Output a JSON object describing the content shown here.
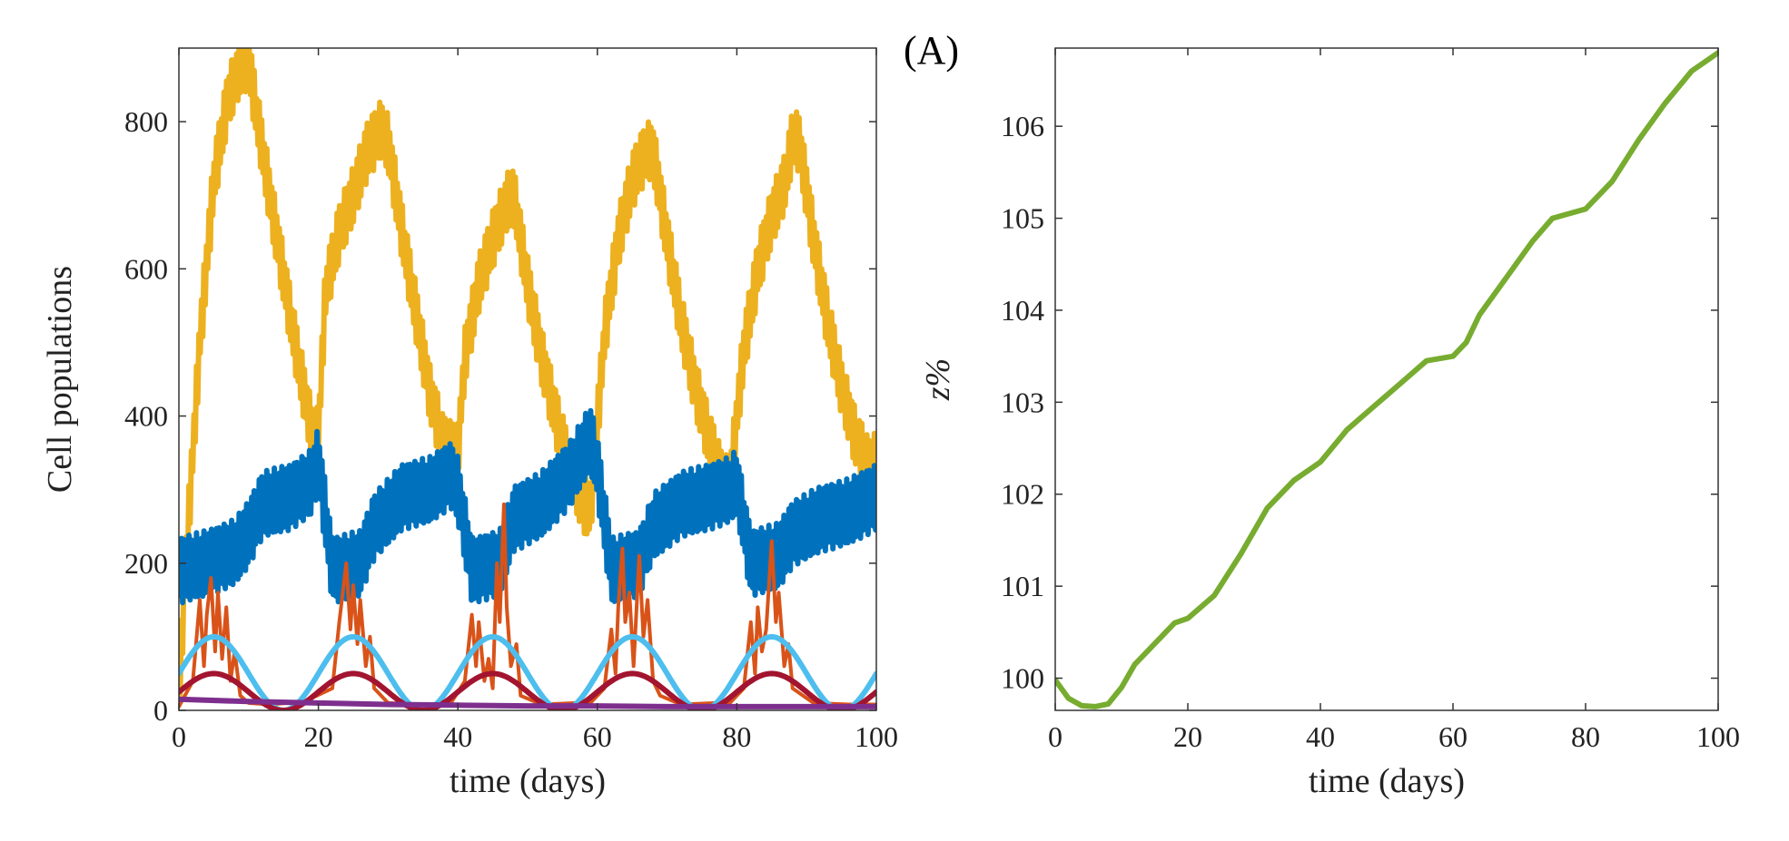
{
  "panel_label": "(A)",
  "chart_data": [
    {
      "type": "line",
      "title": "",
      "xlabel": "time (days)",
      "ylabel": "Cell populations",
      "xlim": [
        0,
        100
      ],
      "ylim": [
        0,
        900
      ],
      "xticks": [
        0,
        20,
        40,
        60,
        80,
        100
      ],
      "yticks": [
        0,
        200,
        400,
        600,
        800
      ],
      "grid": false,
      "series": [
        {
          "name": "yellow",
          "color": "#EDB120",
          "noise": 40,
          "points": [
            [
              0,
              20
            ],
            [
              1,
              200
            ],
            [
              3,
              500
            ],
            [
              5,
              720
            ],
            [
              7,
              830
            ],
            [
              9,
              880
            ],
            [
              10,
              880
            ],
            [
              11,
              820
            ],
            [
              13,
              700
            ],
            [
              15,
              590
            ],
            [
              17,
              480
            ],
            [
              19,
              380
            ],
            [
              20,
              370
            ],
            [
              21,
              570
            ],
            [
              23,
              650
            ],
            [
              25,
              700
            ],
            [
              27,
              760
            ],
            [
              29,
              790
            ],
            [
              30,
              770
            ],
            [
              32,
              650
            ],
            [
              34,
              540
            ],
            [
              36,
              430
            ],
            [
              38,
              360
            ],
            [
              40,
              350
            ],
            [
              41,
              480
            ],
            [
              43,
              580
            ],
            [
              45,
              640
            ],
            [
              47,
              690
            ],
            [
              48,
              700
            ],
            [
              50,
              580
            ],
            [
              52,
              480
            ],
            [
              54,
              400
            ],
            [
              56,
              330
            ],
            [
              58,
              280
            ],
            [
              59,
              270
            ],
            [
              61,
              510
            ],
            [
              63,
              640
            ],
            [
              65,
              720
            ],
            [
              67,
              760
            ],
            [
              68,
              760
            ],
            [
              70,
              640
            ],
            [
              72,
              530
            ],
            [
              74,
              440
            ],
            [
              76,
              370
            ],
            [
              78,
              310
            ],
            [
              79,
              305
            ],
            [
              81,
              490
            ],
            [
              83,
              600
            ],
            [
              85,
              670
            ],
            [
              87,
              720
            ],
            [
              88,
              780
            ],
            [
              89,
              770
            ],
            [
              91,
              640
            ],
            [
              93,
              530
            ],
            [
              95,
              440
            ],
            [
              97,
              370
            ],
            [
              99,
              330
            ],
            [
              100,
              340
            ]
          ]
        },
        {
          "name": "blue",
          "color": "#0072BD",
          "noise": 45,
          "points": [
            [
              0,
              190
            ],
            [
              4,
              200
            ],
            [
              8,
              215
            ],
            [
              10,
              240
            ],
            [
              12,
              280
            ],
            [
              16,
              290
            ],
            [
              19,
              310
            ],
            [
              20,
              340
            ],
            [
              22,
              190
            ],
            [
              26,
              200
            ],
            [
              28,
              250
            ],
            [
              32,
              290
            ],
            [
              36,
              300
            ],
            [
              39,
              320
            ],
            [
              40,
              300
            ],
            [
              42,
              190
            ],
            [
              46,
              200
            ],
            [
              48,
              260
            ],
            [
              52,
              280
            ],
            [
              56,
              320
            ],
            [
              59,
              370
            ],
            [
              60,
              330
            ],
            [
              62,
              190
            ],
            [
              66,
              200
            ],
            [
              68,
              250
            ],
            [
              72,
              280
            ],
            [
              76,
              290
            ],
            [
              79,
              300
            ],
            [
              80,
              310
            ],
            [
              82,
              200
            ],
            [
              86,
              210
            ],
            [
              88,
              240
            ],
            [
              92,
              260
            ],
            [
              96,
              270
            ],
            [
              100,
              290
            ]
          ]
        },
        {
          "name": "orange",
          "color": "#D95319",
          "noise": 0,
          "points": [
            [
              0,
              5
            ],
            [
              2,
              40
            ],
            [
              3,
              150
            ],
            [
              3.6,
              60
            ],
            [
              4,
              130
            ],
            [
              4.6,
              180
            ],
            [
              5.2,
              80
            ],
            [
              5.6,
              160
            ],
            [
              6.2,
              70
            ],
            [
              6.8,
              140
            ],
            [
              7.4,
              40
            ],
            [
              8,
              80
            ],
            [
              8.8,
              20
            ],
            [
              10,
              10
            ],
            [
              13,
              8
            ],
            [
              18,
              12
            ],
            [
              22,
              30
            ],
            [
              23,
              120
            ],
            [
              24,
              200
            ],
            [
              24.6,
              110
            ],
            [
              25,
              170
            ],
            [
              25.6,
              90
            ],
            [
              26,
              150
            ],
            [
              26.8,
              60
            ],
            [
              27.4,
              100
            ],
            [
              28,
              30
            ],
            [
              30,
              10
            ],
            [
              35,
              8
            ],
            [
              39,
              10
            ],
            [
              41,
              40
            ],
            [
              42,
              130
            ],
            [
              42.6,
              60
            ],
            [
              43,
              120
            ],
            [
              43.8,
              40
            ],
            [
              44.4,
              70
            ],
            [
              45,
              30
            ],
            [
              45.6,
              200
            ],
            [
              46,
              120
            ],
            [
              46.6,
              280
            ],
            [
              47,
              140
            ],
            [
              47.6,
              60
            ],
            [
              48.4,
              90
            ],
            [
              49,
              20
            ],
            [
              52,
              8
            ],
            [
              57,
              10
            ],
            [
              59,
              10
            ],
            [
              61,
              30
            ],
            [
              62,
              110
            ],
            [
              62.6,
              50
            ],
            [
              63,
              140
            ],
            [
              63.6,
              220
            ],
            [
              64,
              120
            ],
            [
              64.6,
              160
            ],
            [
              65.2,
              60
            ],
            [
              66,
              210
            ],
            [
              66.6,
              100
            ],
            [
              67.2,
              150
            ],
            [
              68,
              40
            ],
            [
              69,
              20
            ],
            [
              72,
              8
            ],
            [
              77,
              10
            ],
            [
              79,
              10
            ],
            [
              81,
              30
            ],
            [
              82,
              120
            ],
            [
              82.6,
              50
            ],
            [
              83,
              140
            ],
            [
              83.6,
              80
            ],
            [
              84.2,
              110
            ],
            [
              85,
              230
            ],
            [
              85.6,
              120
            ],
            [
              86,
              160
            ],
            [
              86.8,
              60
            ],
            [
              87.4,
              90
            ],
            [
              88,
              30
            ],
            [
              91,
              10
            ],
            [
              96,
              8
            ],
            [
              100,
              8
            ]
          ]
        },
        {
          "name": "light-blue",
          "color": "#4DBEEE",
          "formula": "50 + 50*sin(2*pi*(t-0)/20)"
        },
        {
          "name": "dark-red",
          "color": "#A2142F",
          "formula": "25 + 25*sin(2*pi*(t-0)/20)"
        },
        {
          "name": "purple",
          "color": "#7E2F8E",
          "noise": 0,
          "points": [
            [
              0,
              15
            ],
            [
              10,
              12
            ],
            [
              20,
              10
            ],
            [
              30,
              8
            ],
            [
              40,
              7
            ],
            [
              50,
              6
            ],
            [
              60,
              6
            ],
            [
              70,
              5
            ],
            [
              80,
              5
            ],
            [
              90,
              5
            ],
            [
              100,
              5
            ]
          ]
        }
      ]
    },
    {
      "type": "line",
      "title": "",
      "xlabel": "time (days)",
      "ylabel": "z%",
      "xlim": [
        0,
        100
      ],
      "ylim": [
        99.65,
        106.85
      ],
      "xticks": [
        0,
        20,
        40,
        60,
        80,
        100
      ],
      "yticks": [
        100,
        101,
        102,
        103,
        104,
        105,
        106
      ],
      "grid": false,
      "series": [
        {
          "name": "z-percent",
          "color": "#77AC30",
          "noise": 0,
          "points": [
            [
              0,
              99.98
            ],
            [
              2,
              99.78
            ],
            [
              4,
              99.7
            ],
            [
              6,
              99.69
            ],
            [
              8,
              99.72
            ],
            [
              10,
              99.9
            ],
            [
              12,
              100.15
            ],
            [
              16,
              100.45
            ],
            [
              18,
              100.6
            ],
            [
              20,
              100.65
            ],
            [
              24,
              100.9
            ],
            [
              28,
              101.35
            ],
            [
              32,
              101.85
            ],
            [
              36,
              102.15
            ],
            [
              40,
              102.35
            ],
            [
              44,
              102.7
            ],
            [
              48,
              102.95
            ],
            [
              52,
              103.2
            ],
            [
              56,
              103.45
            ],
            [
              60,
              103.5
            ],
            [
              62,
              103.65
            ],
            [
              64,
              103.95
            ],
            [
              68,
              104.35
            ],
            [
              72,
              104.75
            ],
            [
              75,
              105.0
            ],
            [
              80,
              105.1
            ],
            [
              84,
              105.4
            ],
            [
              88,
              105.85
            ],
            [
              92,
              106.25
            ],
            [
              96,
              106.6
            ],
            [
              100,
              106.8
            ]
          ]
        }
      ]
    }
  ]
}
